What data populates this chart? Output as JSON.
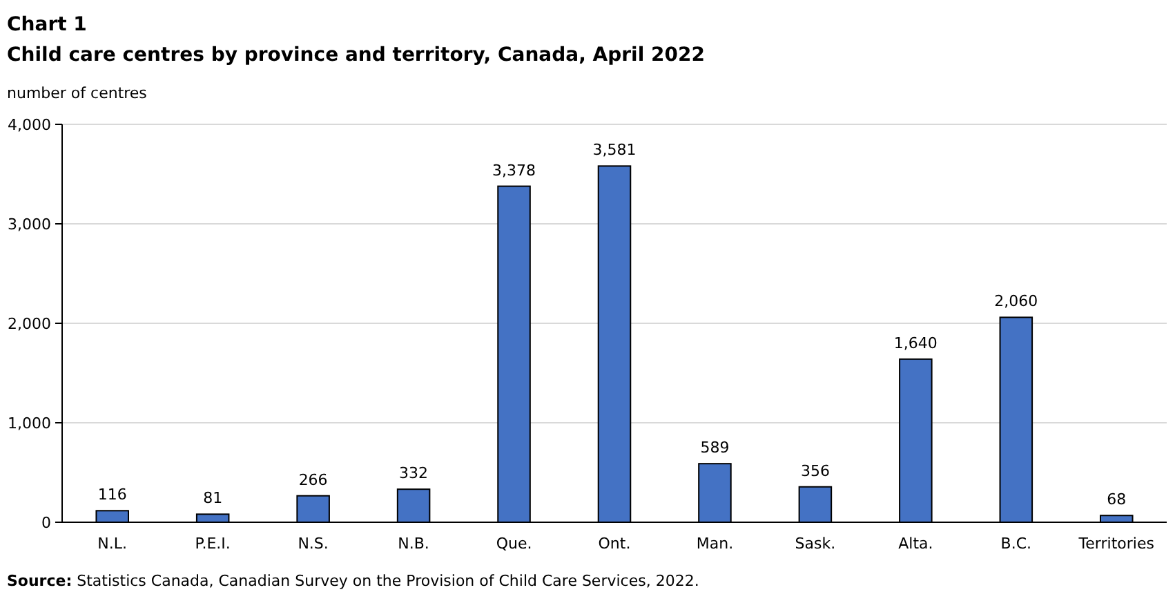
{
  "chart_data": {
    "type": "bar",
    "title": "Chart 1",
    "subtitle": "Child care centres by province and territory, Canada, April 2022",
    "ylabel": "number of centres",
    "categories": [
      "N.L.",
      "P.E.I.",
      "N.S.",
      "N.B.",
      "Que.",
      "Ont.",
      "Man.",
      "Sask.",
      "Alta.",
      "B.C.",
      "Territories"
    ],
    "values": [
      116,
      81,
      266,
      332,
      3378,
      3581,
      589,
      356,
      1640,
      2060,
      68
    ],
    "value_labels": [
      "116",
      "81",
      "266",
      "332",
      "3,378",
      "3,581",
      "589",
      "356",
      "1,640",
      "2,060",
      "68"
    ],
    "color": "#4472c4",
    "ylim": [
      0,
      4000
    ],
    "yticks": [
      {
        "value": 0,
        "label": "0"
      },
      {
        "value": 1000,
        "label": "1,000"
      },
      {
        "value": 2000,
        "label": "2,000"
      },
      {
        "value": 3000,
        "label": "3,000"
      },
      {
        "value": 4000,
        "label": "4,000"
      }
    ],
    "grid": "y",
    "annotations": [
      "Source: Statistics Canada, Canadian Survey on the Provision of Child Care Services, 2022."
    ]
  }
}
